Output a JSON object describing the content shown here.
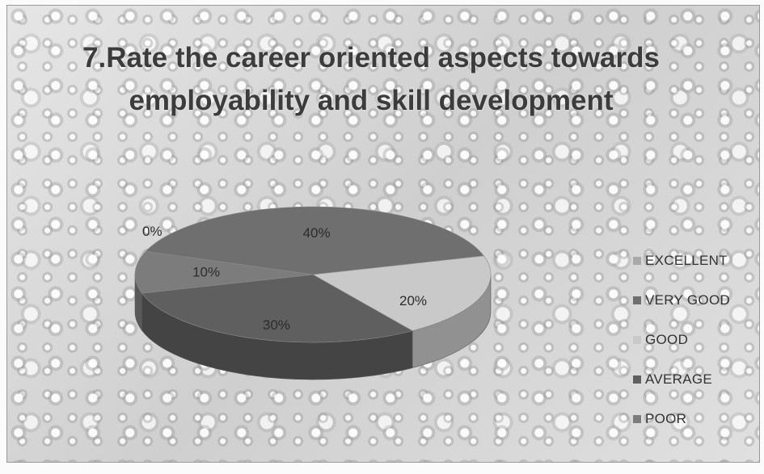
{
  "chart_data": {
    "type": "pie",
    "title": "7.Rate the career oriented aspects towards employability and skill development",
    "categories": [
      "EXCELLENT",
      "VERY GOOD",
      "GOOD",
      "AVERAGE",
      "POOR"
    ],
    "values": [
      0,
      40,
      20,
      30,
      10
    ],
    "value_labels": [
      "0%",
      "40%",
      "20%",
      "30%",
      "10%"
    ],
    "unit": "%",
    "colors": [
      "#a9a9a9",
      "#6f6f6f",
      "#c9c9c9",
      "#5f5f5f",
      "#7c7c7c"
    ],
    "legend_position": "right",
    "three_d": true
  }
}
